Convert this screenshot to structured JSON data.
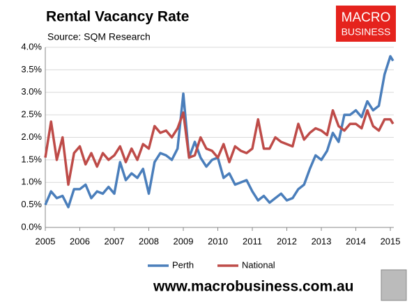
{
  "chart_data": {
    "type": "line",
    "title": "Rental Vacancy Rate",
    "subtitle": "Source: SQM Research",
    "logo": [
      "MACRO",
      "BUSINESS"
    ],
    "footer": "www.macrobusiness.com.au",
    "x": [
      2005,
      2005.167,
      2005.333,
      2005.5,
      2005.667,
      2005.833,
      2006,
      2006.167,
      2006.333,
      2006.5,
      2006.667,
      2006.833,
      2007,
      2007.167,
      2007.333,
      2007.5,
      2007.667,
      2007.833,
      2008,
      2008.167,
      2008.333,
      2008.5,
      2008.667,
      2008.833,
      2009,
      2009.167,
      2009.333,
      2009.5,
      2009.667,
      2009.833,
      2010,
      2010.167,
      2010.333,
      2010.5,
      2010.667,
      2010.833,
      2011,
      2011.167,
      2011.333,
      2011.5,
      2011.667,
      2011.833,
      2012,
      2012.167,
      2012.333,
      2012.5,
      2012.667,
      2012.833,
      2013,
      2013.167,
      2013.333,
      2013.5,
      2013.667,
      2013.833,
      2014,
      2014.167,
      2014.333,
      2014.5,
      2014.667,
      2014.833,
      2015,
      2015.08
    ],
    "series": [
      {
        "name": "Perth",
        "color": "#4a7ebb",
        "values": [
          0.5,
          0.8,
          0.65,
          0.7,
          0.45,
          0.85,
          0.85,
          0.95,
          0.65,
          0.8,
          0.75,
          0.9,
          0.75,
          1.45,
          1.05,
          1.2,
          1.1,
          1.3,
          0.75,
          1.45,
          1.65,
          1.6,
          1.5,
          1.75,
          2.97,
          1.55,
          1.9,
          1.55,
          1.35,
          1.5,
          1.55,
          1.1,
          1.2,
          0.95,
          1.0,
          1.05,
          0.8,
          0.6,
          0.7,
          0.55,
          0.65,
          0.75,
          0.6,
          0.65,
          0.85,
          0.95,
          1.3,
          1.6,
          1.5,
          1.7,
          2.1,
          1.9,
          2.5,
          2.5,
          2.6,
          2.45,
          2.8,
          2.6,
          2.7,
          3.4,
          3.8,
          3.7
        ]
      },
      {
        "name": "National",
        "color": "#be4b48",
        "values": [
          1.55,
          2.35,
          1.5,
          2.0,
          0.95,
          1.65,
          1.8,
          1.4,
          1.65,
          1.35,
          1.65,
          1.5,
          1.6,
          1.8,
          1.45,
          1.75,
          1.5,
          1.85,
          1.75,
          2.25,
          2.1,
          2.15,
          2.0,
          2.2,
          2.55,
          1.55,
          1.6,
          2.0,
          1.75,
          1.7,
          1.55,
          1.85,
          1.45,
          1.8,
          1.7,
          1.65,
          1.75,
          2.4,
          1.75,
          1.75,
          2.0,
          1.9,
          1.85,
          1.8,
          2.3,
          1.95,
          2.1,
          2.2,
          2.15,
          2.05,
          2.6,
          2.25,
          2.15,
          2.3,
          2.3,
          2.2,
          2.6,
          2.25,
          2.15,
          2.4,
          2.4,
          2.3
        ]
      }
    ],
    "xlim": [
      2005,
      2015.1
    ],
    "xticks": [
      2005,
      2006,
      2007,
      2008,
      2009,
      2010,
      2011,
      2012,
      2013,
      2014,
      2015
    ],
    "ylim": [
      0,
      4
    ],
    "yticks": [
      {
        "value": 0,
        "label": "0.0%"
      },
      {
        "value": 0.5,
        "label": "0.5%"
      },
      {
        "value": 1,
        "label": "1.0%"
      },
      {
        "value": 1.5,
        "label": "1.5%"
      },
      {
        "value": 2,
        "label": "2.0%"
      },
      {
        "value": 2.5,
        "label": "2.5%"
      },
      {
        "value": 3,
        "label": "3.0%"
      },
      {
        "value": 3.5,
        "label": "3.5%"
      },
      {
        "value": 4,
        "label": "4.0%"
      }
    ],
    "grid": true,
    "legend": "bottom"
  }
}
